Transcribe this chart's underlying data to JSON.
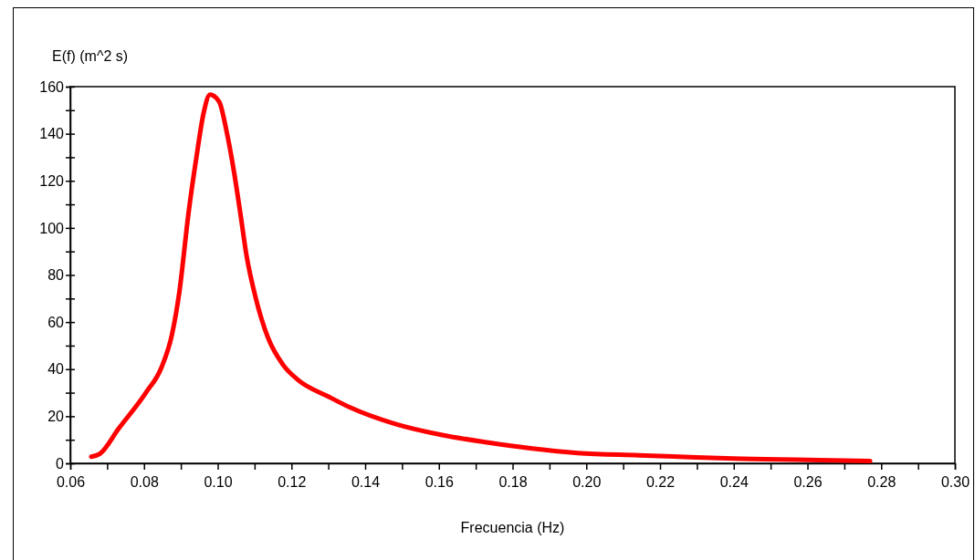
{
  "chart_data": {
    "type": "line",
    "xlabel": "Frecuencia (Hz)",
    "ylabel": "E(f) (m^2 s)",
    "xlim": [
      0.06,
      0.3
    ],
    "ylim": [
      0,
      160
    ],
    "xticks": [
      {
        "value": 0.06,
        "label": "0.06"
      },
      {
        "value": 0.07,
        "label": null
      },
      {
        "value": 0.08,
        "label": "0.08"
      },
      {
        "value": 0.09,
        "label": null
      },
      {
        "value": 0.1,
        "label": "0.10"
      },
      {
        "value": 0.11,
        "label": null
      },
      {
        "value": 0.12,
        "label": "0.12"
      },
      {
        "value": 0.13,
        "label": null
      },
      {
        "value": 0.14,
        "label": "0.14"
      },
      {
        "value": 0.15,
        "label": null
      },
      {
        "value": 0.16,
        "label": "0.16"
      },
      {
        "value": 0.17,
        "label": null
      },
      {
        "value": 0.18,
        "label": "0.18"
      },
      {
        "value": 0.19,
        "label": null
      },
      {
        "value": 0.2,
        "label": "0.20"
      },
      {
        "value": 0.21,
        "label": null
      },
      {
        "value": 0.22,
        "label": "0.22"
      },
      {
        "value": 0.23,
        "label": null
      },
      {
        "value": 0.24,
        "label": "0.24"
      },
      {
        "value": 0.25,
        "label": null
      },
      {
        "value": 0.26,
        "label": "0.26"
      },
      {
        "value": 0.27,
        "label": null
      },
      {
        "value": 0.28,
        "label": "0.28"
      },
      {
        "value": 0.29,
        "label": null
      },
      {
        "value": 0.3,
        "label": "0.30"
      }
    ],
    "yticks": [
      0,
      {
        "value": 10,
        "label": null
      },
      20,
      {
        "value": 30,
        "label": null
      },
      40,
      {
        "value": 50,
        "label": null
      },
      60,
      {
        "value": 70,
        "label": null
      },
      80,
      {
        "value": 90,
        "label": null
      },
      100,
      {
        "value": 110,
        "label": null
      },
      120,
      {
        "value": 130,
        "label": null
      },
      140,
      {
        "value": 150,
        "label": null
      },
      160
    ],
    "grid": false,
    "marker": "none",
    "line_style": "solid",
    "series": [
      {
        "color": "#ff0000",
        "x": [
          0.0657,
          0.068,
          0.0731,
          0.0805,
          0.0847,
          0.0876,
          0.0896,
          0.0921,
          0.0942,
          0.0962,
          0.0979,
          0.1004,
          0.1024,
          0.1045,
          0.1061,
          0.1078,
          0.1103,
          0.1136,
          0.1177,
          0.1218,
          0.1301,
          0.1358,
          0.1482,
          0.1606,
          0.173,
          0.1853,
          0.1977,
          0.2142,
          0.2266,
          0.24,
          0.26,
          0.277
        ],
        "values": [
          2.8,
          4,
          14.7,
          30,
          40.6,
          54.8,
          72.9,
          106.6,
          129.8,
          149,
          156.6,
          153.6,
          141,
          123,
          106.6,
          88.4,
          70.3,
          53.5,
          41.9,
          35.4,
          28.3,
          23.8,
          16.7,
          12.1,
          8.9,
          6.3,
          4.4,
          3.4,
          2.7,
          2,
          1.5,
          1
        ]
      }
    ]
  }
}
